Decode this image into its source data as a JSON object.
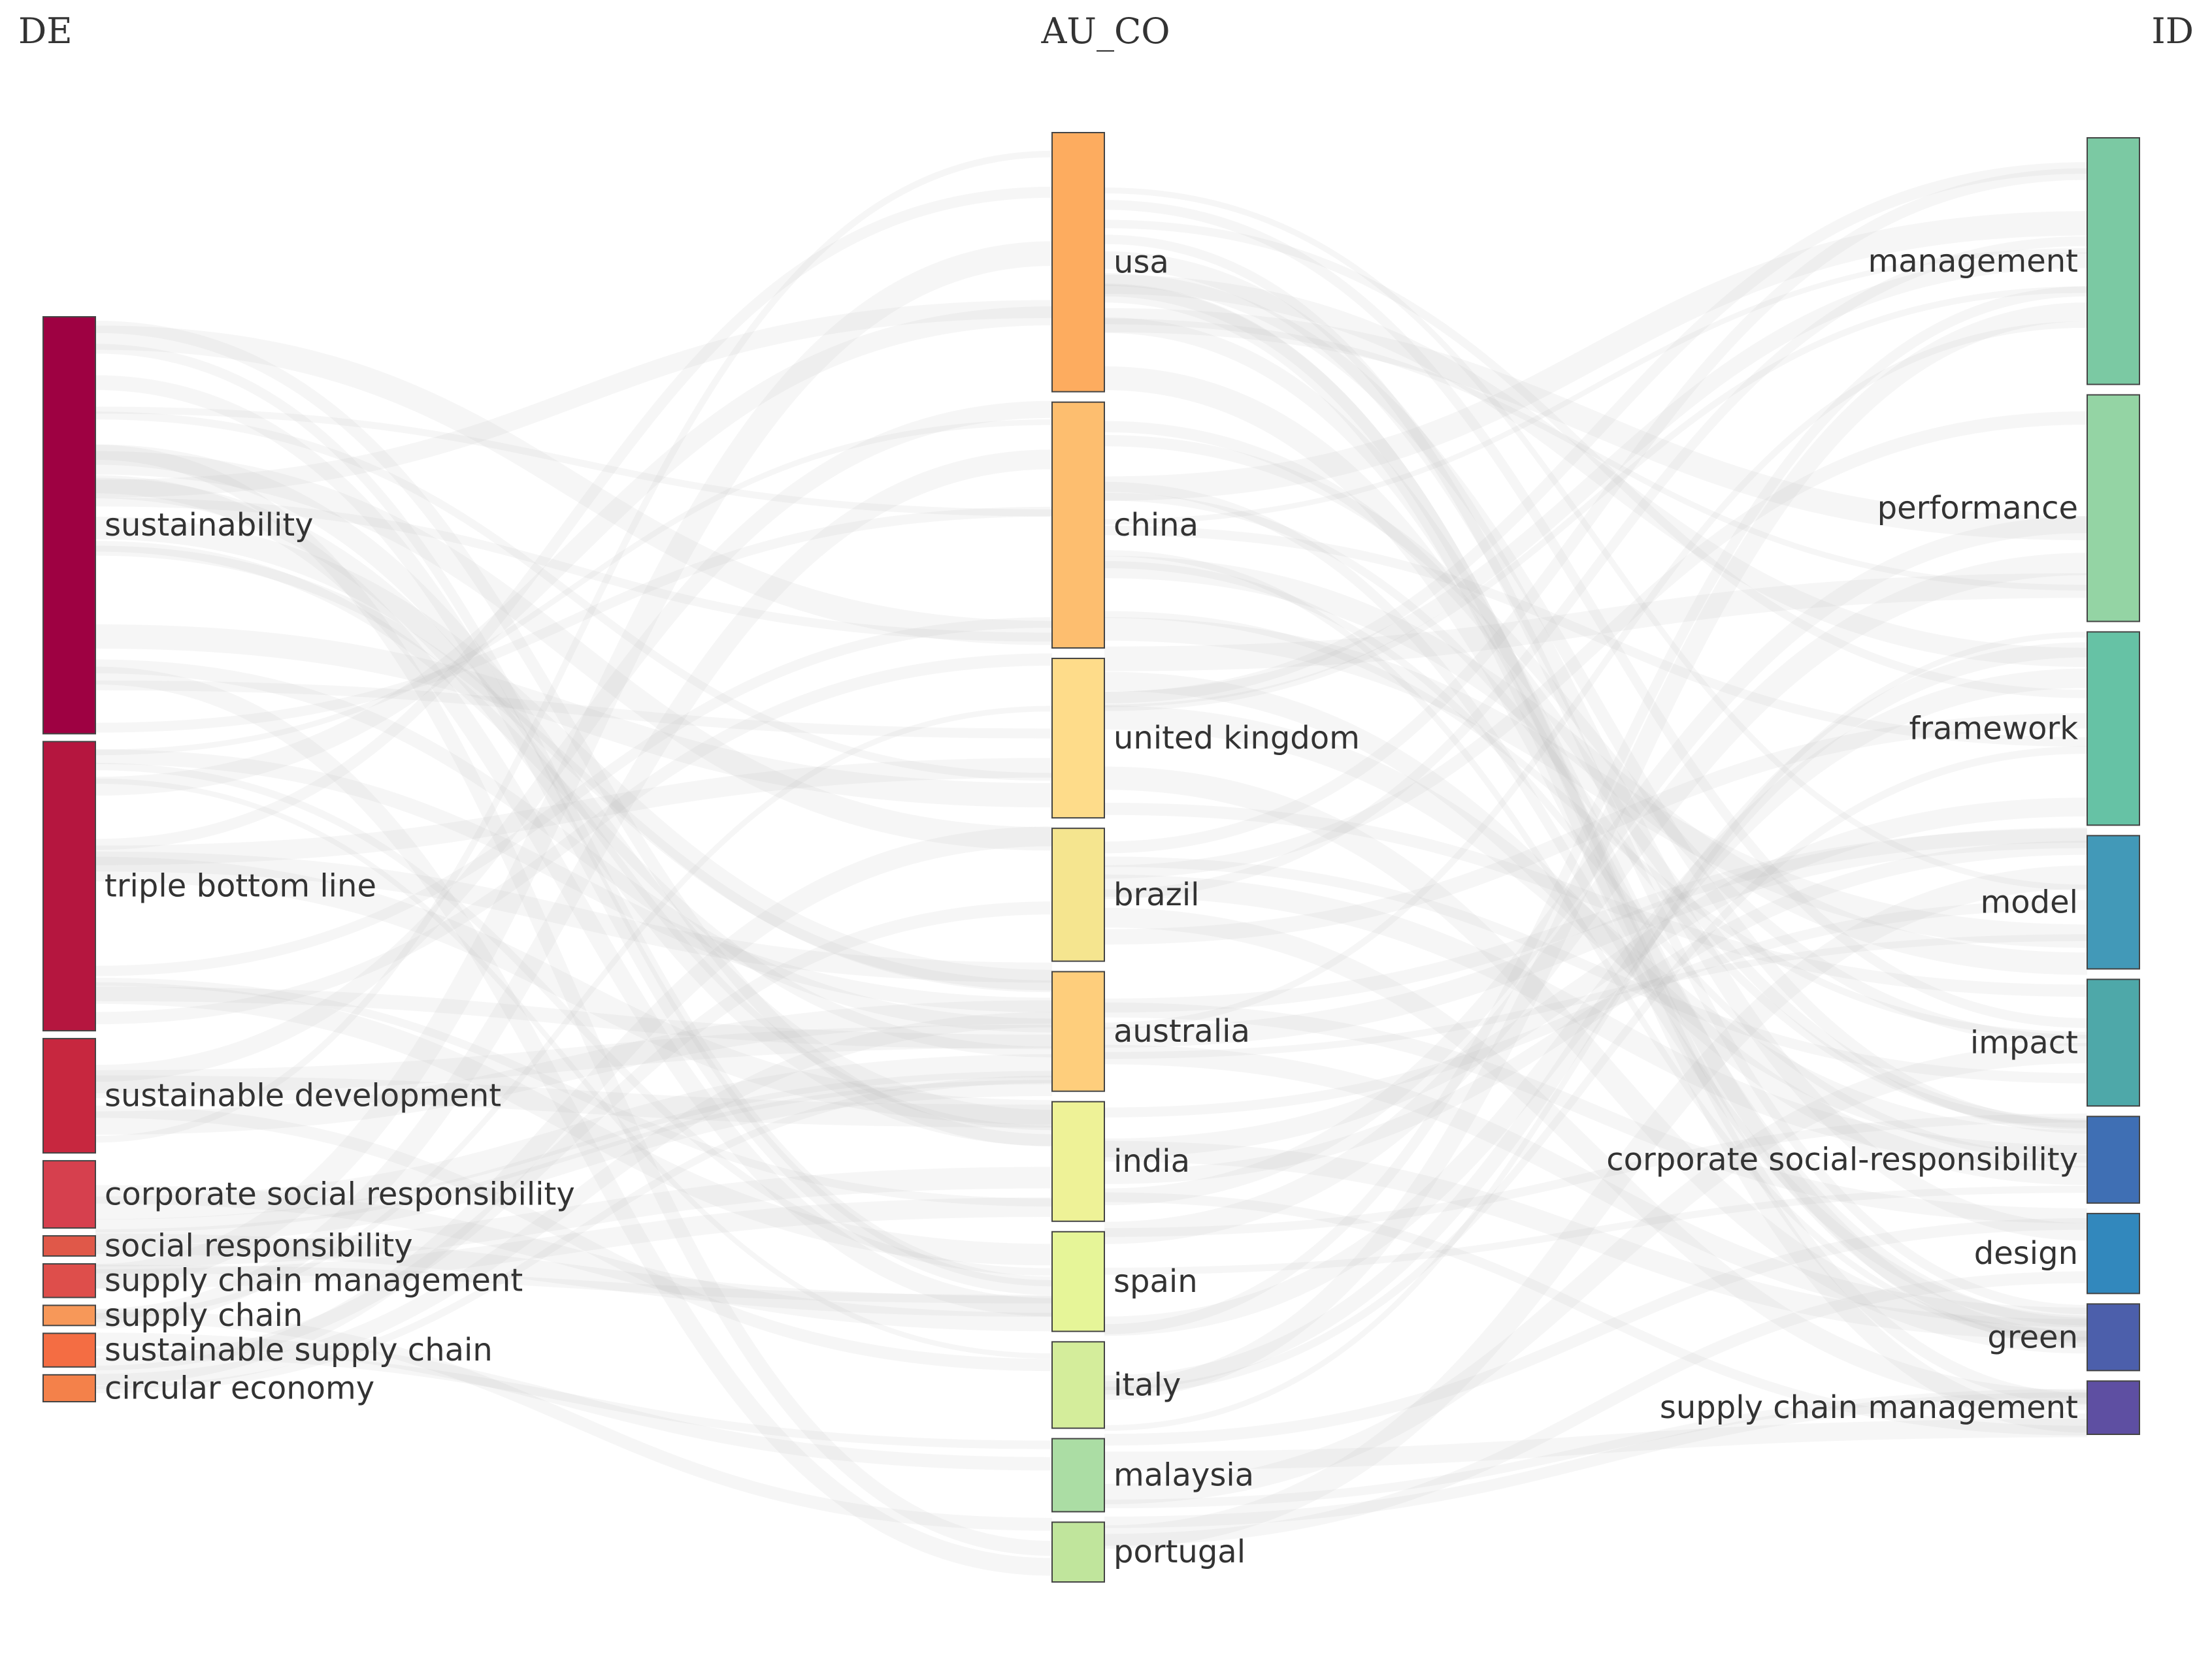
{
  "chart_data": {
    "type": "sankey",
    "columns": [
      {
        "title": "DE",
        "nodes": [
          {
            "label": "sustainability",
            "weight": 62,
            "color": "#9e0142"
          },
          {
            "label": "triple bottom line",
            "weight": 43,
            "color": "#b5163f"
          },
          {
            "label": "sustainable development",
            "weight": 17,
            "color": "#c7273f"
          },
          {
            "label": "corporate social responsibility",
            "weight": 10,
            "color": "#d6404e"
          },
          {
            "label": "social responsibility",
            "weight": 3,
            "color": "#e05849"
          },
          {
            "label": "supply chain management",
            "weight": 5,
            "color": "#de4e4b"
          },
          {
            "label": "supply chain",
            "weight": 3,
            "color": "#f79859"
          },
          {
            "label": "sustainable supply chain",
            "weight": 5,
            "color": "#f46d43"
          },
          {
            "label": "circular economy",
            "weight": 4,
            "color": "#f4814a"
          }
        ]
      },
      {
        "title": "AU_CO",
        "nodes": [
          {
            "label": "usa",
            "weight": 39,
            "color": "#fdac5f"
          },
          {
            "label": "china",
            "weight": 37,
            "color": "#fdbe6f"
          },
          {
            "label": "united kingdom",
            "weight": 24,
            "color": "#fedc8a"
          },
          {
            "label": "brazil",
            "weight": 20,
            "color": "#f5e58f"
          },
          {
            "label": "australia",
            "weight": 18,
            "color": "#fece7c"
          },
          {
            "label": "india",
            "weight": 18,
            "color": "#eef297"
          },
          {
            "label": "spain",
            "weight": 15,
            "color": "#e6f598"
          },
          {
            "label": "italy",
            "weight": 13,
            "color": "#d4ed9b"
          },
          {
            "label": "malaysia",
            "weight": 11,
            "color": "#abdda4"
          },
          {
            "label": "portugal",
            "weight": 9,
            "color": "#c0e59c"
          }
        ]
      },
      {
        "title": "ID",
        "nodes": [
          {
            "label": "management",
            "weight": 37,
            "color": "#7bc9a3"
          },
          {
            "label": "performance",
            "weight": 34,
            "color": "#94d4a4"
          },
          {
            "label": "framework",
            "weight": 29,
            "color": "#66c2a5"
          },
          {
            "label": "model",
            "weight": 20,
            "color": "#4299b8"
          },
          {
            "label": "impact",
            "weight": 19,
            "color": "#4ea8a9"
          },
          {
            "label": "corporate social-responsibility",
            "weight": 13,
            "color": "#3f6fb4"
          },
          {
            "label": "design",
            "weight": 12,
            "color": "#3288bd"
          },
          {
            "label": "green",
            "weight": 10,
            "color": "#4c5fab"
          },
          {
            "label": "supply chain management",
            "weight": 8,
            "color": "#5e4fa2"
          }
        ]
      }
    ],
    "link_color": "#bdbdbd"
  }
}
